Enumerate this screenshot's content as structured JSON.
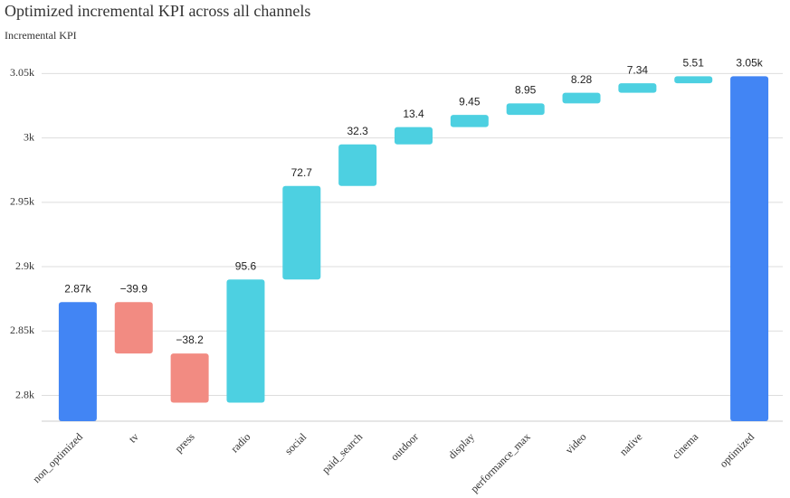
{
  "chart_data": {
    "type": "waterfall",
    "title": "Optimized incremental KPI across all channels",
    "y_label": "Incremental KPI",
    "categories": [
      "non_optimized",
      "tv",
      "press",
      "radio",
      "social",
      "paid_search",
      "outdoor",
      "display",
      "performance_max",
      "video",
      "native",
      "cinema",
      "optimized"
    ],
    "measures": [
      "absolute",
      "relative",
      "relative",
      "relative",
      "relative",
      "relative",
      "relative",
      "relative",
      "relative",
      "relative",
      "relative",
      "relative",
      "total"
    ],
    "values": [
      2872.5,
      -39.9,
      -38.2,
      95.6,
      72.7,
      32.3,
      13.4,
      9.45,
      8.95,
      8.28,
      7.34,
      5.51,
      3047.93
    ],
    "value_labels": [
      "2.87k",
      "−39.9",
      "−38.2",
      "95.6",
      "72.7",
      "32.3",
      "13.4",
      "9.45",
      "8.95",
      "8.28",
      "7.34",
      "5.51",
      "3.05k"
    ],
    "colors": {
      "increase": "#4dd0e1",
      "decrease": "#f28b82",
      "total": "#4285f4"
    },
    "ylim": [
      2780,
      3065
    ],
    "yticks": [
      {
        "value": 2800,
        "label": "2.8k"
      },
      {
        "value": 2850,
        "label": "2.85k"
      },
      {
        "value": 2900,
        "label": "2.9k"
      },
      {
        "value": 2950,
        "label": "2.95k"
      },
      {
        "value": 3000,
        "label": "3k"
      },
      {
        "value": 3050,
        "label": "3.05k"
      }
    ],
    "grid": true
  }
}
